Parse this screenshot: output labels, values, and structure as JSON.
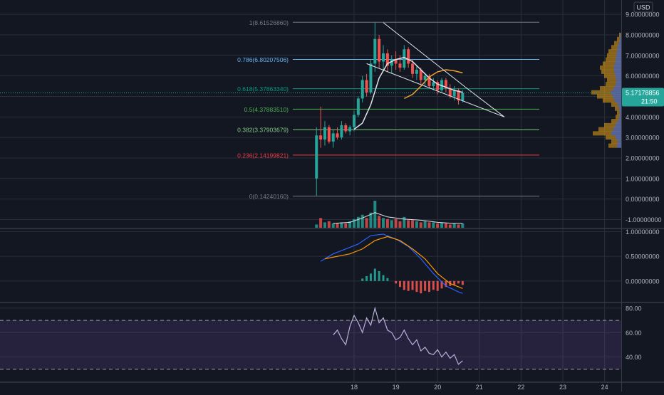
{
  "currency": "USD",
  "colors": {
    "background": "#131722",
    "grid": "#2a2e39",
    "up": "#26a69a",
    "down": "#ef5350",
    "ma_white": "#e0e3eb",
    "ma_orange": "#f0a030",
    "macd_blue": "#2962ff",
    "macd_signal": "#ff9800",
    "rsi_line": "#b8b0d8",
    "rsi_band": "#7e57c2",
    "volume_profile": "#e8a317",
    "volume_profile_blue": "#2962ff",
    "price_tag": "#26a69a",
    "fib_0": "#787b86",
    "fib_0236": "#f23645",
    "fib_0382": "#81c784",
    "fib_05": "#4caf50",
    "fib_0618": "#089981",
    "fib_0786": "#64b5f6",
    "fib_1": "#787b86"
  },
  "chart_data": [
    {
      "type": "candlestick",
      "pane": "price",
      "x_ticks": [
        "18",
        "19",
        "20",
        "21",
        "22",
        "23",
        "24"
      ],
      "y_ticks": [
        "9.00000000",
        "8.00000000",
        "7.00000000",
        "6.00000000",
        "5.00000000",
        "4.00000000",
        "3.00000000",
        "2.00000000",
        "1.00000000",
        "0.00000000",
        "-1.00000000"
      ],
      "ylim": [
        -1.4,
        9.7
      ],
      "last_price": "5.17178856",
      "countdown": "21:50",
      "fib_levels": [
        {
          "label": "1(8.61526860)",
          "value": 8.6152686,
          "color_key": "fib_1"
        },
        {
          "label": "0.786(6.80207506)",
          "value": 6.80207506,
          "color_key": "fib_0786"
        },
        {
          "label": "0.618(5.37863340)",
          "value": 5.3786334,
          "color_key": "fib_0618"
        },
        {
          "label": "0.5(4.37883510)",
          "value": 4.3788351,
          "color_key": "fib_05"
        },
        {
          "label": "0.382(3.37903679)",
          "value": 3.37903679,
          "color_key": "fib_0382"
        },
        {
          "label": "0.236(2.14199821)",
          "value": 2.14199821,
          "color_key": "fib_0236"
        },
        {
          "label": "0(0.14240160)",
          "value": 0.1424016,
          "color_key": "fib_0"
        }
      ],
      "candles": [
        {
          "t": 17.1,
          "o": 1.0,
          "h": 3.5,
          "l": 0.14,
          "c": 3.1
        },
        {
          "t": 17.2,
          "o": 3.1,
          "h": 4.5,
          "l": 2.5,
          "c": 2.9
        },
        {
          "t": 17.3,
          "o": 2.9,
          "h": 3.8,
          "l": 2.6,
          "c": 3.5
        },
        {
          "t": 17.4,
          "o": 3.5,
          "h": 3.6,
          "l": 2.7,
          "c": 2.8
        },
        {
          "t": 17.5,
          "o": 2.8,
          "h": 3.4,
          "l": 2.5,
          "c": 3.2
        },
        {
          "t": 17.6,
          "o": 3.2,
          "h": 3.5,
          "l": 2.9,
          "c": 3.0
        },
        {
          "t": 17.7,
          "o": 3.0,
          "h": 3.8,
          "l": 2.9,
          "c": 3.6
        },
        {
          "t": 17.8,
          "o": 3.6,
          "h": 3.7,
          "l": 3.2,
          "c": 3.3
        },
        {
          "t": 17.9,
          "o": 3.3,
          "h": 3.6,
          "l": 3.1,
          "c": 3.5
        },
        {
          "t": 18.0,
          "o": 3.5,
          "h": 4.3,
          "l": 3.3,
          "c": 4.1
        },
        {
          "t": 18.1,
          "o": 4.1,
          "h": 5.0,
          "l": 4.0,
          "c": 4.9
        },
        {
          "t": 18.2,
          "o": 4.9,
          "h": 6.0,
          "l": 4.7,
          "c": 5.8
        },
        {
          "t": 18.3,
          "o": 5.8,
          "h": 6.1,
          "l": 5.0,
          "c": 5.2
        },
        {
          "t": 18.4,
          "o": 5.2,
          "h": 6.8,
          "l": 5.1,
          "c": 6.6
        },
        {
          "t": 18.5,
          "o": 6.6,
          "h": 8.6,
          "l": 6.2,
          "c": 7.8
        },
        {
          "t": 18.6,
          "o": 7.8,
          "h": 8.0,
          "l": 6.4,
          "c": 6.7
        },
        {
          "t": 18.7,
          "o": 6.7,
          "h": 7.5,
          "l": 6.3,
          "c": 7.1
        },
        {
          "t": 18.8,
          "o": 7.1,
          "h": 7.3,
          "l": 6.2,
          "c": 6.5
        },
        {
          "t": 18.9,
          "o": 6.5,
          "h": 7.0,
          "l": 6.1,
          "c": 6.8
        },
        {
          "t": 19.0,
          "o": 6.8,
          "h": 7.2,
          "l": 6.3,
          "c": 6.6
        },
        {
          "t": 19.1,
          "o": 6.6,
          "h": 7.0,
          "l": 6.2,
          "c": 6.4
        },
        {
          "t": 19.2,
          "o": 6.4,
          "h": 7.5,
          "l": 6.3,
          "c": 7.3
        },
        {
          "t": 19.3,
          "o": 7.3,
          "h": 7.4,
          "l": 6.4,
          "c": 6.6
        },
        {
          "t": 19.4,
          "o": 6.6,
          "h": 6.8,
          "l": 5.9,
          "c": 6.1
        },
        {
          "t": 19.5,
          "o": 6.1,
          "h": 6.5,
          "l": 5.8,
          "c": 6.3
        },
        {
          "t": 19.6,
          "o": 6.3,
          "h": 6.4,
          "l": 5.6,
          "c": 5.8
        },
        {
          "t": 19.7,
          "o": 5.8,
          "h": 6.1,
          "l": 5.5,
          "c": 6.0
        },
        {
          "t": 19.8,
          "o": 6.0,
          "h": 6.1,
          "l": 5.4,
          "c": 5.5
        },
        {
          "t": 19.9,
          "o": 5.5,
          "h": 5.9,
          "l": 5.3,
          "c": 5.7
        },
        {
          "t": 20.0,
          "o": 5.7,
          "h": 5.8,
          "l": 5.1,
          "c": 5.3
        },
        {
          "t": 20.1,
          "o": 5.3,
          "h": 5.9,
          "l": 5.2,
          "c": 5.8
        },
        {
          "t": 20.2,
          "o": 5.8,
          "h": 5.9,
          "l": 5.2,
          "c": 5.4
        },
        {
          "t": 20.3,
          "o": 5.4,
          "h": 5.6,
          "l": 4.9,
          "c": 5.0
        },
        {
          "t": 20.4,
          "o": 5.0,
          "h": 5.5,
          "l": 4.8,
          "c": 5.3
        },
        {
          "t": 20.5,
          "o": 5.3,
          "h": 5.4,
          "l": 4.6,
          "c": 4.8
        },
        {
          "t": 20.6,
          "o": 4.8,
          "h": 5.3,
          "l": 4.7,
          "c": 5.17
        }
      ],
      "ma_white": [
        [
          18.0,
          3.4
        ],
        [
          18.2,
          3.7
        ],
        [
          18.4,
          4.6
        ],
        [
          18.6,
          5.9
        ],
        [
          18.8,
          6.6
        ],
        [
          19.0,
          6.8
        ],
        [
          19.2,
          6.9
        ],
        [
          19.4,
          6.7
        ],
        [
          19.6,
          6.3
        ],
        [
          19.8,
          5.9
        ],
        [
          20.0,
          5.6
        ],
        [
          20.2,
          5.45
        ],
        [
          20.4,
          5.3
        ],
        [
          20.6,
          5.2
        ]
      ],
      "ma_orange": [
        [
          19.2,
          4.9
        ],
        [
          19.4,
          5.1
        ],
        [
          19.6,
          5.5
        ],
        [
          19.8,
          5.95
        ],
        [
          20.0,
          6.2
        ],
        [
          20.2,
          6.3
        ],
        [
          20.4,
          6.25
        ],
        [
          20.6,
          6.15
        ]
      ],
      "trendlines": [
        {
          "from": [
            18.7,
            8.6
          ],
          "to": [
            20.7,
            5.4
          ]
        },
        {
          "from": [
            18.3,
            6.6
          ],
          "to": [
            21.6,
            4.0
          ]
        },
        {
          "from": [
            20.7,
            5.4
          ],
          "to": [
            21.6,
            4.0
          ]
        }
      ],
      "volume": [
        3,
        9,
        5,
        6,
        4,
        4,
        5,
        4,
        6,
        8,
        10,
        12,
        9,
        14,
        25,
        11,
        9,
        8,
        7,
        8,
        6,
        10,
        7,
        7,
        6,
        5,
        6,
        5,
        5,
        4,
        5,
        4,
        3,
        4,
        3,
        4
      ],
      "volume_ma": [
        [
          17.5,
          4
        ],
        [
          17.9,
          5
        ],
        [
          18.2,
          9
        ],
        [
          18.5,
          14
        ],
        [
          18.8,
          10
        ],
        [
          19.2,
          8
        ],
        [
          19.6,
          7
        ],
        [
          20.0,
          5
        ],
        [
          20.4,
          4
        ],
        [
          20.6,
          4
        ]
      ]
    },
    {
      "type": "line",
      "pane": "macd",
      "y_ticks": [
        "1.00000000",
        "0.50000000",
        "0.00000000"
      ],
      "ylim": [
        -0.42,
        1.05
      ],
      "series": [
        {
          "color_key": "macd_blue",
          "points": [
            [
              17.2,
              0.4
            ],
            [
              17.5,
              0.55
            ],
            [
              17.8,
              0.65
            ],
            [
              18.1,
              0.75
            ],
            [
              18.4,
              0.92
            ],
            [
              18.7,
              0.95
            ],
            [
              19.0,
              0.85
            ],
            [
              19.3,
              0.7
            ],
            [
              19.6,
              0.45
            ],
            [
              19.9,
              0.15
            ],
            [
              20.2,
              -0.1
            ],
            [
              20.5,
              -0.22
            ],
            [
              20.6,
              -0.25
            ]
          ]
        },
        {
          "color_key": "macd_signal",
          "points": [
            [
              17.3,
              0.45
            ],
            [
              17.6,
              0.5
            ],
            [
              17.9,
              0.55
            ],
            [
              18.2,
              0.65
            ],
            [
              18.5,
              0.82
            ],
            [
              18.8,
              0.9
            ],
            [
              19.1,
              0.82
            ],
            [
              19.4,
              0.65
            ],
            [
              19.7,
              0.45
            ],
            [
              20.0,
              0.15
            ],
            [
              20.3,
              -0.05
            ],
            [
              20.6,
              -0.15
            ]
          ]
        }
      ],
      "histogram": [
        [
          18.2,
          0.05
        ],
        [
          18.3,
          0.1
        ],
        [
          18.4,
          0.15
        ],
        [
          18.5,
          0.25
        ],
        [
          18.6,
          0.2
        ],
        [
          18.7,
          0.12
        ],
        [
          18.8,
          0.06
        ],
        [
          19.0,
          -0.05
        ],
        [
          19.1,
          -0.12
        ],
        [
          19.2,
          -0.18
        ],
        [
          19.3,
          -0.2
        ],
        [
          19.4,
          -0.18
        ],
        [
          19.5,
          -0.22
        ],
        [
          19.6,
          -0.25
        ],
        [
          19.7,
          -0.2
        ],
        [
          19.8,
          -0.22
        ],
        [
          19.9,
          -0.18
        ],
        [
          20.0,
          -0.2
        ],
        [
          20.1,
          -0.15
        ],
        [
          20.2,
          -0.12
        ],
        [
          20.3,
          -0.1
        ],
        [
          20.4,
          -0.08
        ],
        [
          20.5,
          -0.05
        ],
        [
          20.6,
          -0.08
        ]
      ]
    },
    {
      "type": "line",
      "pane": "rsi",
      "y_ticks": [
        "80.00",
        "60.00",
        "40.00"
      ],
      "ylim": [
        20,
        84
      ],
      "band": [
        30,
        70
      ],
      "midline": 50,
      "points": [
        [
          17.5,
          58
        ],
        [
          17.6,
          62
        ],
        [
          17.7,
          55
        ],
        [
          17.8,
          50
        ],
        [
          17.9,
          65
        ],
        [
          18.0,
          74
        ],
        [
          18.1,
          68
        ],
        [
          18.2,
          60
        ],
        [
          18.3,
          72
        ],
        [
          18.4,
          66
        ],
        [
          18.5,
          80
        ],
        [
          18.6,
          68
        ],
        [
          18.7,
          72
        ],
        [
          18.8,
          62
        ],
        [
          18.9,
          60
        ],
        [
          19.0,
          54
        ],
        [
          19.1,
          56
        ],
        [
          19.2,
          62
        ],
        [
          19.3,
          55
        ],
        [
          19.4,
          50
        ],
        [
          19.5,
          54
        ],
        [
          19.6,
          45
        ],
        [
          19.7,
          48
        ],
        [
          19.8,
          43
        ],
        [
          19.9,
          42
        ],
        [
          20.0,
          46
        ],
        [
          20.1,
          40
        ],
        [
          20.2,
          44
        ],
        [
          20.3,
          39
        ],
        [
          20.4,
          42
        ],
        [
          20.5,
          34
        ],
        [
          20.6,
          37
        ]
      ]
    }
  ]
}
